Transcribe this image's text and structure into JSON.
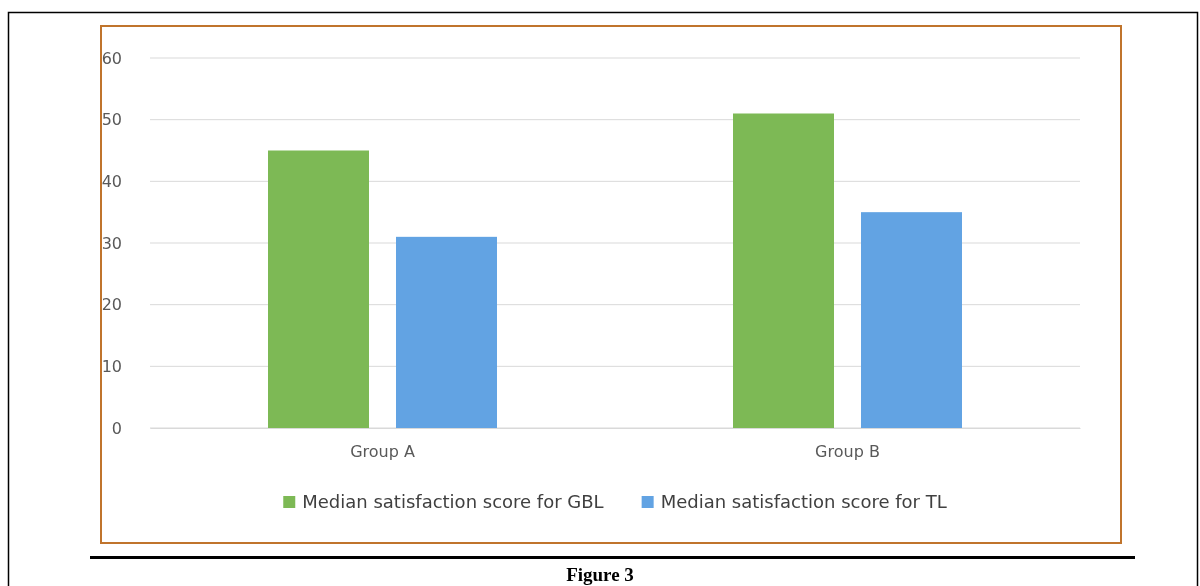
{
  "chart_data": {
    "type": "bar",
    "categories": [
      "Group A",
      "Group B"
    ],
    "series": [
      {
        "name": "Median satisfaction score for GBL",
        "color": "#7db955",
        "values": [
          45,
          51
        ]
      },
      {
        "name": "Median satisfaction score for TL",
        "color": "#62a3e3",
        "values": [
          31,
          35
        ]
      }
    ],
    "ylim": [
      0,
      60
    ],
    "yticks": [
      0,
      10,
      20,
      30,
      40,
      50,
      60
    ],
    "grid": "y",
    "legend": "bottom",
    "annotations": [
      "Figure 3"
    ]
  }
}
